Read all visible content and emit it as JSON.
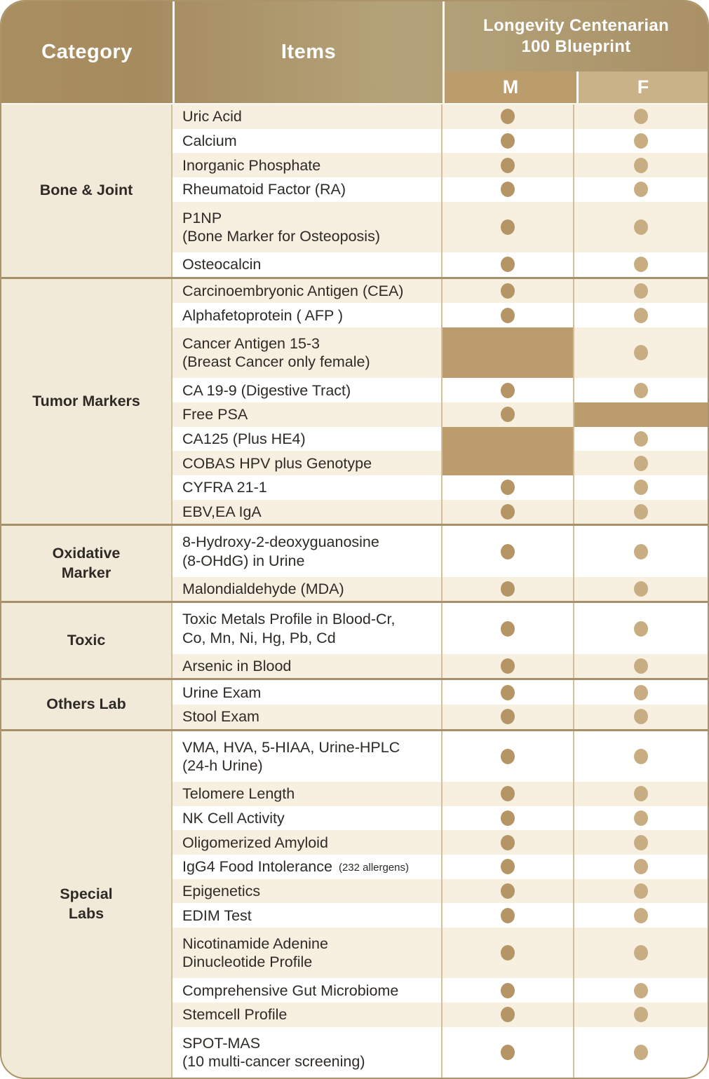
{
  "header": {
    "category_label": "Category",
    "items_label": "Items",
    "package_title_line1": "Longevity Centenarian",
    "package_title_line2": "100 Blueprint",
    "col_m": "M",
    "col_f": "F"
  },
  "colors": {
    "header_grad_a": "#a98e61",
    "header_grad_b": "#b4a37a",
    "header_grad_c": "#aa9066",
    "m_header": "#bb9c6b",
    "f_header": "#c9b188",
    "cream_row": "#f7f0e1",
    "white_row": "#ffffff",
    "category_bg": "#f2ead9",
    "blocked_cell": "#bc9c6c",
    "m_dot": "#b59565",
    "f_dot": "#c8ad83",
    "group_separator": "#a6906b",
    "column_separator": "#d3bf98",
    "header_text": "#ffffff",
    "body_text": "#2e2b27"
  },
  "groups": [
    {
      "category": "Bone & Joint",
      "rows": [
        {
          "item": "Uric Acid",
          "m": "dot",
          "f": "dot"
        },
        {
          "item": "Calcium",
          "m": "dot",
          "f": "dot"
        },
        {
          "item": "Inorganic Phosphate",
          "m": "dot",
          "f": "dot"
        },
        {
          "item": "Rheumatoid Factor (RA)",
          "m": "dot",
          "f": "dot"
        },
        {
          "item": "P1NP\n(Bone Marker for Osteoposis)",
          "m": "dot",
          "f": "dot"
        },
        {
          "item": "Osteocalcin",
          "m": "dot",
          "f": "dot"
        }
      ]
    },
    {
      "category": "Tumor Markers",
      "rows": [
        {
          "item": "Carcinoembryonic Antigen (CEA)",
          "m": "dot",
          "f": "dot"
        },
        {
          "item": "Alphafetoprotein ( AFP )",
          "m": "dot",
          "f": "dot"
        },
        {
          "item": "Cancer Antigen 15-3\n(Breast Cancer only female)",
          "m": "blocked",
          "f": "dot"
        },
        {
          "item": "CA 19-9 (Digestive Tract)",
          "m": "dot",
          "f": "dot"
        },
        {
          "item": "Free PSA",
          "m": "dot",
          "f": "blocked"
        },
        {
          "item": "CA125 (Plus HE4)",
          "m": "blocked",
          "f": "dot"
        },
        {
          "item": "COBAS HPV plus Genotype",
          "m": "blocked",
          "f": "dot"
        },
        {
          "item": "CYFRA 21-1",
          "m": "dot",
          "f": "dot"
        },
        {
          "item": "EBV,EA IgA",
          "m": "dot",
          "f": "dot"
        }
      ]
    },
    {
      "category": "Oxidative\nMarker",
      "rows": [
        {
          "item": "8-Hydroxy-2-deoxyguanosine\n(8-OHdG) in Urine",
          "m": "dot",
          "f": "dot"
        },
        {
          "item": "Malondialdehyde (MDA)",
          "m": "dot",
          "f": "dot"
        }
      ]
    },
    {
      "category": "Toxic",
      "rows": [
        {
          "item": "Toxic Metals Profile in Blood-Cr,\nCo, Mn, Ni, Hg, Pb, Cd",
          "m": "dot",
          "f": "dot"
        },
        {
          "item": "Arsenic in Blood",
          "m": "dot",
          "f": "dot"
        }
      ]
    },
    {
      "category": "Others Lab",
      "rows": [
        {
          "item": "Urine Exam",
          "m": "dot",
          "f": "dot"
        },
        {
          "item": "Stool Exam",
          "m": "dot",
          "f": "dot"
        }
      ]
    },
    {
      "category": "Special\nLabs",
      "rows": [
        {
          "item": "VMA, HVA, 5-HIAA, Urine-HPLC\n(24-h Urine)",
          "m": "dot",
          "f": "dot"
        },
        {
          "item": "Telomere Length",
          "m": "dot",
          "f": "dot"
        },
        {
          "item": "NK Cell Activity",
          "m": "dot",
          "f": "dot"
        },
        {
          "item": "Oligomerized Amyloid",
          "m": "dot",
          "f": "dot"
        },
        {
          "item": "IgG4 Food Intolerance",
          "note": "(232 allergens)",
          "m": "dot",
          "f": "dot"
        },
        {
          "item": "Epigenetics",
          "m": "dot",
          "f": "dot"
        },
        {
          "item": "EDIM Test",
          "m": "dot",
          "f": "dot"
        },
        {
          "item": "Nicotinamide Adenine\nDinucleotide Profile",
          "m": "dot",
          "f": "dot"
        },
        {
          "item": "Comprehensive Gut Microbiome",
          "m": "dot",
          "f": "dot"
        },
        {
          "item": "Stemcell Profile",
          "m": "dot",
          "f": "dot"
        },
        {
          "item": "SPOT-MAS\n(10 multi-cancer screening)",
          "m": "dot",
          "f": "dot"
        }
      ]
    }
  ]
}
